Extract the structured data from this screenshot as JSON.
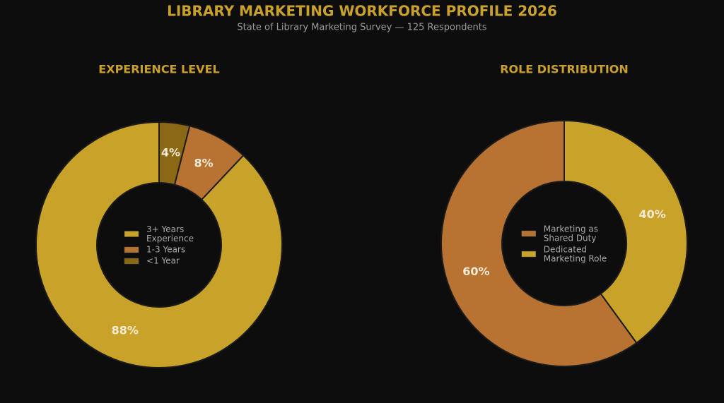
{
  "title": "LIBRARY MARKETING WORKFORCE PROFILE 2026",
  "subtitle": "State of Library Marketing Survey — 125 Respondents",
  "chart_data": [
    {
      "type": "pie",
      "title": "EXPERIENCE LEVEL",
      "categories": [
        "3+ Years\nExperience",
        "1-3 Years",
        "<1 Year"
      ],
      "values": [
        88,
        8,
        4
      ],
      "value_labels": [
        "88%",
        "8%",
        "4%"
      ],
      "colors": [
        "#c9a22a",
        "#b87333",
        "#8b6914"
      ],
      "legend": "center"
    },
    {
      "type": "pie",
      "title": "ROLE DISTRIBUTION",
      "categories": [
        "Marketing as\nShared Duty",
        "Dedicated\nMarketing Role"
      ],
      "values": [
        60,
        40
      ],
      "value_labels": [
        "60%",
        "40%"
      ],
      "colors": [
        "#b87333",
        "#c9a22a"
      ],
      "legend": "center"
    }
  ]
}
